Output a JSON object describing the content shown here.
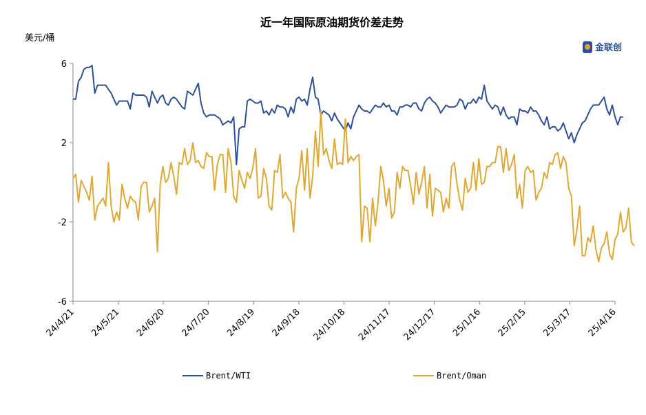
{
  "chart_data": {
    "type": "line",
    "title": "近一年国际原油期货价差走势",
    "ylabel": "美元/桶",
    "ylim": [
      -6,
      6
    ],
    "yticks": [
      6,
      2,
      -2,
      -6
    ],
    "x_tick_labels": [
      "24/4/21",
      "24/5/21",
      "24/6/20",
      "24/7/20",
      "24/8/19",
      "24/9/18",
      "24/10/18",
      "24/11/17",
      "24/12/17",
      "25/1/16",
      "25/2/15",
      "25/3/17",
      "25/4/16"
    ],
    "n_points": 200,
    "series": [
      {
        "name": "Brent/WTI",
        "color": "#2e4f9a",
        "values": [
          4.2,
          4.2,
          5.1,
          5.3,
          5.7,
          5.8,
          5.8,
          5.9,
          4.5,
          4.9,
          4.9,
          4.9,
          4.9,
          4.7,
          4.5,
          4.2,
          3.9,
          4.1,
          4.1,
          4.1,
          4.1,
          3.7,
          4.5,
          4.4,
          4.4,
          4.4,
          4.4,
          4.3,
          3.8,
          4.6,
          4.3,
          4.0,
          4.3,
          4.4,
          4.0,
          3.9,
          4.2,
          4.3,
          4.2,
          4.0,
          3.8,
          3.7,
          4.6,
          4.5,
          4.4,
          4.7,
          5.0,
          4.0,
          3.5,
          3.3,
          3.4,
          3.4,
          3.4,
          3.3,
          3.2,
          2.9,
          3.0,
          3.1,
          3.0,
          3.3,
          0.9,
          2.7,
          2.8,
          2.8,
          4.1,
          4.2,
          4.1,
          4.0,
          4.0,
          4.1,
          3.5,
          3.6,
          3.4,
          3.7,
          3.5,
          3.9,
          3.8,
          3.8,
          3.7,
          3.3,
          3.8,
          3.5,
          4.2,
          4.3,
          4.1,
          4.2,
          3.9,
          4.7,
          5.3,
          4.3,
          4.2,
          3.4,
          3.6,
          3.5,
          3.4,
          3.1,
          3.5,
          3.2,
          3.0,
          2.8,
          2.6,
          3.0,
          2.7,
          3.3,
          3.6,
          3.9,
          3.7,
          3.6,
          3.6,
          3.5,
          3.7,
          3.9,
          3.8,
          3.8,
          4.0,
          3.8,
          3.9,
          3.6,
          3.6,
          3.4,
          3.8,
          3.8,
          3.9,
          3.9,
          3.8,
          4.0,
          4.0,
          3.7,
          3.6,
          4.0,
          4.2,
          4.3,
          4.1,
          4.0,
          3.8,
          3.5,
          3.7,
          3.9,
          3.8,
          3.8,
          3.8,
          3.9,
          4.2,
          4.1,
          3.7,
          4.0,
          4.0,
          4.2,
          4.0,
          4.3,
          4.2,
          4.9,
          4.1,
          3.9,
          3.7,
          3.9,
          3.8,
          3.4,
          3.8,
          3.4,
          3.2,
          3.3,
          3.3,
          2.9,
          3.7,
          3.6,
          3.6,
          3.5,
          3.8,
          3.6,
          3.6,
          3.4,
          3.1,
          2.9,
          3.3,
          2.7,
          2.8,
          2.8,
          2.6,
          2.7,
          3.0,
          2.6,
          2.2,
          2.5,
          2.0,
          2.4,
          2.7,
          3.0,
          3.1,
          3.4,
          3.7,
          3.9,
          3.9,
          3.9,
          4.1,
          4.3,
          3.7,
          3.4,
          3.9,
          3.3,
          2.9,
          3.3,
          3.3
        ]
      },
      {
        "name": "Brent/Oman",
        "color": "#e0a832",
        "values": [
          0.2,
          0.4,
          -1.0,
          0.1,
          -0.2,
          -0.5,
          -0.9,
          0.3,
          -1.9,
          -1.2,
          -1.0,
          -0.8,
          -1.2,
          1.0,
          -1.2,
          -2.0,
          -1.5,
          -1.9,
          -0.1,
          -0.8,
          -1.3,
          -0.7,
          -0.9,
          -1.0,
          -1.9,
          -0.2,
          0.0,
          0.0,
          -1.5,
          -1.2,
          -0.8,
          -3.5,
          -0.1,
          0.8,
          0.0,
          0.2,
          1.0,
          0.3,
          -0.6,
          1.0,
          0.9,
          1.7,
          0.9,
          1.1,
          2.0,
          1.0,
          1.1,
          0.8,
          0.7,
          1.5,
          1.3,
          1.3,
          -0.4,
          0.9,
          1.4,
          1.4,
          -0.5,
          1.7,
          1.0,
          -0.7,
          -1.0,
          0.6,
          0.1,
          -0.3,
          0.5,
          0.2,
          0.7,
          1.7,
          -0.8,
          -0.7,
          0.7,
          0.2,
          -1.2,
          -1.4,
          0.6,
          0.5,
          1.4,
          -0.8,
          -0.5,
          -0.8,
          -1.0,
          -2.5,
          -0.3,
          0.2,
          1.6,
          -0.4,
          1.7,
          -0.8,
          0.3,
          2.6,
          0.8,
          3.6,
          1.4,
          1.7,
          1.1,
          0.7,
          2.2,
          0.9,
          1.0,
          0.9,
          3.2,
          1.0,
          1.3,
          1.1,
          1.3,
          1.4,
          -3.0,
          -1.2,
          -1.3,
          -3.0,
          -0.8,
          -2.2,
          -1.0,
          0.8,
          0.1,
          -1.2,
          -0.3,
          -1.8,
          -1.5,
          0.5,
          -0.3,
          0.8,
          0.6,
          0.6,
          -0.2,
          -1.1,
          0.5,
          -0.6,
          0.0,
          0.8,
          -1.3,
          0.4,
          -1.7,
          -0.3,
          -0.4,
          -0.5,
          -1.5,
          -0.8,
          -1.3,
          0.8,
          1.0,
          -0.1,
          -0.9,
          -1.4,
          0.2,
          -0.5,
          -0.3,
          1.0,
          -0.4,
          1.2,
          -0.1,
          0.0,
          0.8,
          0.8,
          1.0,
          1.0,
          1.8,
          1.8,
          0.5,
          1.7,
          0.6,
          0.9,
          1.4,
          -0.8,
          -0.1,
          -1.3,
          0.6,
          0.8,
          0.5,
          0.6,
          -0.9,
          -0.5,
          -0.3,
          0.5,
          0.2,
          1.0,
          0.9,
          1.4,
          1.5,
          0.7,
          1.3,
          1.0,
          -0.3,
          -0.7,
          -3.2,
          -2.4,
          -1.2,
          -3.7,
          -3.7,
          -2.8,
          -3.0,
          -2.2,
          -3.4,
          -4.0,
          -3.3,
          -3.1,
          -2.5,
          -3.6,
          -3.9,
          -2.9,
          -2.6,
          -1.5,
          -2.5,
          -2.3,
          -1.3,
          -3.0,
          -3.2
        ]
      }
    ],
    "legend_position": "bottom",
    "grid": false
  },
  "logo": {
    "text": "金联创"
  }
}
